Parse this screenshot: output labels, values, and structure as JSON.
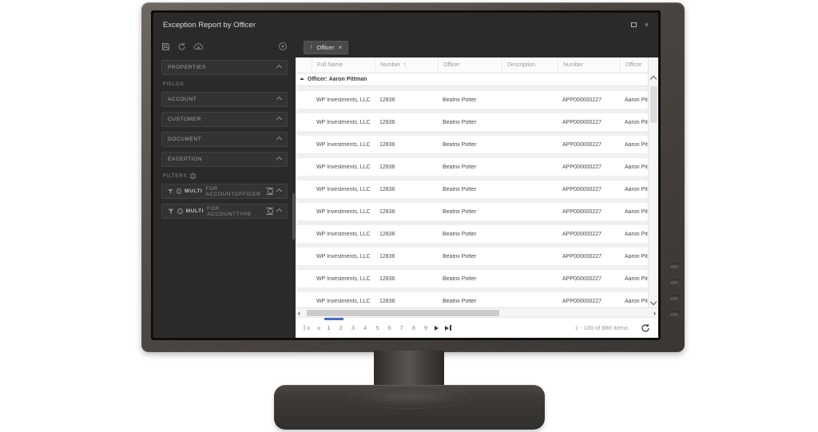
{
  "window": {
    "title": "Exception Report by Officer"
  },
  "icons": {
    "sort_asc": "↑",
    "close_chip": "×",
    "close_window": "×",
    "info": "i"
  },
  "colors": {
    "accent_blue": "#4a6fc0",
    "active_page": "#c05f52",
    "sidebar_bg": "#2b2a29",
    "panel_bg": "#343332"
  },
  "sidebar": {
    "toolbar_icons": [
      "save-icon",
      "refresh-icon",
      "cloud-download-icon",
      "settings-icon"
    ],
    "properties_label": "PROPERTIES",
    "fields_label": "FIELDS",
    "field_panels": [
      {
        "label": "ACCOUNT"
      },
      {
        "label": "CUSTOMER"
      },
      {
        "label": "DOCUMENT"
      },
      {
        "label": "EXCEPTION"
      }
    ],
    "filters_label": "FILTERS",
    "filter_panels": [
      {
        "bold": "MULTI",
        "rest": "FOR ACCOUNTOFFICER"
      },
      {
        "bold": "MULTI",
        "rest": "FOR ACCOUNTTYPE"
      }
    ]
  },
  "grid": {
    "chip_label": "Officer",
    "columns": [
      "Full Name",
      "Number",
      "Officer",
      "Description",
      "Number",
      "Officer"
    ],
    "sorted_column": "Number",
    "group_header": "Officer: Aaron Pittman",
    "rows": [
      {
        "full_name": "WP Investments, LLC",
        "number": "12836",
        "officer": "Beatrix Potter",
        "description": "",
        "app_number": "APP000000227",
        "group_officer": "Aaron Pittman"
      },
      {
        "full_name": "WP Investments, LLC",
        "number": "12836",
        "officer": "Beatrix Potter",
        "description": "",
        "app_number": "APP000000227",
        "group_officer": "Aaron Pittman"
      },
      {
        "full_name": "WP Investments, LLC",
        "number": "12836",
        "officer": "Beatrix Potter",
        "description": "",
        "app_number": "APP000000227",
        "group_officer": "Aaron Pittman"
      },
      {
        "full_name": "WP Investments, LLC",
        "number": "12836",
        "officer": "Beatrix Potter",
        "description": "",
        "app_number": "APP000000227",
        "group_officer": "Aaron Pittman"
      },
      {
        "full_name": "WP Investments, LLC",
        "number": "12836",
        "officer": "Beatrix Potter",
        "description": "",
        "app_number": "APP000000227",
        "group_officer": "Aaron Pittman"
      },
      {
        "full_name": "WP Investments, LLC",
        "number": "12836",
        "officer": "Beatrix Potter",
        "description": "",
        "app_number": "APP000000227",
        "group_officer": "Aaron Pittman"
      },
      {
        "full_name": "WP Investments, LLC",
        "number": "12836",
        "officer": "Beatrix Potter",
        "description": "",
        "app_number": "APP000000227",
        "group_officer": "Aaron Pittman"
      },
      {
        "full_name": "WP Investments, LLC",
        "number": "12836",
        "officer": "Beatrix Potter",
        "description": "",
        "app_number": "APP000000227",
        "group_officer": "Aaron Pittman"
      },
      {
        "full_name": "WP Investments, LLC",
        "number": "12836",
        "officer": "Beatrix Potter",
        "description": "",
        "app_number": "APP000000227",
        "group_officer": "Aaron Pittman"
      },
      {
        "full_name": "WP Investments, LLC",
        "number": "12836",
        "officer": "Beatrix Potter",
        "description": "",
        "app_number": "APP000000227",
        "group_officer": "Aaron Pittman"
      }
    ]
  },
  "pager": {
    "pages": [
      "1",
      "2",
      "3",
      "4",
      "5",
      "6",
      "7",
      "8",
      "9"
    ],
    "current_page": "1",
    "status": "1 - 100 of 880 items"
  }
}
